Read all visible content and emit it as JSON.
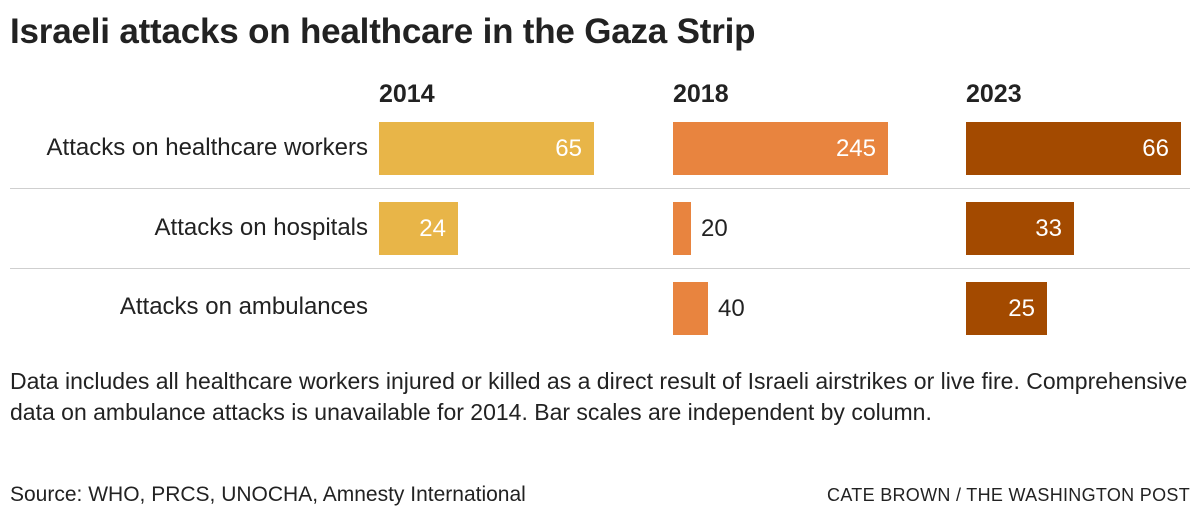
{
  "title": "Israeli attacks on healthcare in the Gaza Strip",
  "chart_data": {
    "type": "bar",
    "title": "Israeli attacks on healthcare in the Gaza Strip",
    "categories": [
      "Attacks on healthcare workers",
      "Attacks on hospitals",
      "Attacks on ambulances"
    ],
    "series": [
      {
        "name": "2014",
        "values": [
          65,
          24,
          null
        ],
        "color": "#E8B548"
      },
      {
        "name": "2018",
        "values": [
          245,
          20,
          40
        ],
        "color": "#E8843F"
      },
      {
        "name": "2023",
        "values": [
          66,
          33,
          25
        ],
        "color": "#A34A00"
      }
    ],
    "independent_scales": true
  },
  "note": "Data includes all healthcare workers injured or killed as a direct result of Israeli airstrikes or live fire. Comprehensive data on ambulance attacks is unavailable for 2014. Bar scales are independent by column.",
  "source": "Source: WHO, PRCS, UNOCHA, Amnesty International",
  "credit": "CATE BROWN / THE WASHINGTON POST"
}
